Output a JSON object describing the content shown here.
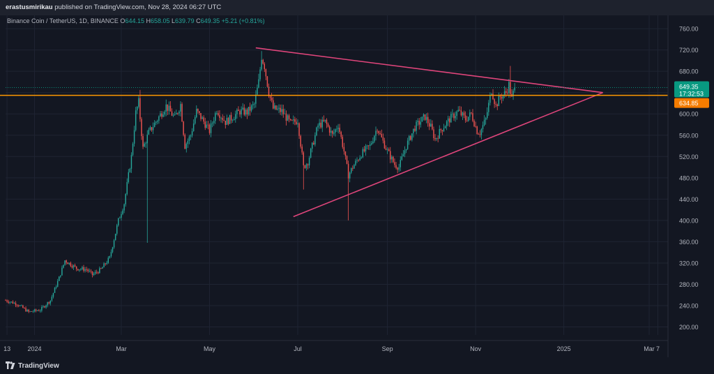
{
  "publish": {
    "author": "erastusmirikau",
    "text": " published on TradingView.com, Nov 28, 2024 06:27 UTC"
  },
  "legend": {
    "symbol": "Binance Coin / TetherUS, 1D, BINANCE",
    "o_label": "O",
    "o": "644.15",
    "h_label": "H",
    "h": "658.05",
    "l_label": "L",
    "l": "639.79",
    "c_label": "C",
    "c": "649.35",
    "change": "+5.21 (+0.81%)"
  },
  "footer": {
    "brand": "TradingView"
  },
  "colors": {
    "background": "#131722",
    "up": "#26a69a",
    "down": "#ef5350",
    "triangle": "#e0457b",
    "horizontal": "#ff9800",
    "price_tag": "#089981",
    "level_tag": "#f57c00",
    "text": "#b2b5be"
  },
  "chart_data": {
    "type": "candlestick",
    "symbol": "Binance Coin / TetherUS",
    "interval": "1D",
    "exchange": "BINANCE",
    "ylim": [
      185,
      785
    ],
    "yticks": [
      200,
      240,
      280,
      320,
      360,
      400,
      440,
      480,
      520,
      560,
      600,
      640,
      680,
      720,
      760
    ],
    "ytick_labels": [
      "200.00",
      "240.00",
      "280.00",
      "320.00",
      "360.00",
      "400.00",
      "440.00",
      "480.00",
      "520.00",
      "560.00",
      "600.00",
      "640.00",
      "680.00",
      "720.00",
      "760.00"
    ],
    "xlim": [
      "2023-12-12",
      "2025-03-14"
    ],
    "xticks": [
      {
        "date": "2023-12-13",
        "label": "13"
      },
      {
        "date": "2024-01-01",
        "label": "2024"
      },
      {
        "date": "2024-03-01",
        "label": "Mar"
      },
      {
        "date": "2024-05-01",
        "label": "May"
      },
      {
        "date": "2024-07-01",
        "label": "Jul"
      },
      {
        "date": "2024-09-01",
        "label": "Sep"
      },
      {
        "date": "2024-11-01",
        "label": "Nov"
      },
      {
        "date": "2025-01-01",
        "label": "2025"
      },
      {
        "date": "2025-03-01",
        "label": "Mar"
      },
      {
        "date": "2025-03-07",
        "label": "7"
      }
    ],
    "grid": true,
    "price_path": [
      [
        "2023-12-12",
        250
      ],
      [
        "2023-12-20",
        243
      ],
      [
        "2023-12-28",
        228
      ],
      [
        "2024-01-05",
        232
      ],
      [
        "2024-01-12",
        250
      ],
      [
        "2024-01-18",
        292
      ],
      [
        "2024-01-22",
        325
      ],
      [
        "2024-01-30",
        310
      ],
      [
        "2024-02-06",
        308
      ],
      [
        "2024-02-10",
        298
      ],
      [
        "2024-02-16",
        308
      ],
      [
        "2024-02-22",
        330
      ],
      [
        "2024-02-28",
        400
      ],
      [
        "2024-03-03",
        432
      ],
      [
        "2024-03-08",
        520
      ],
      [
        "2024-03-11",
        602
      ],
      [
        "2024-03-13",
        622
      ],
      [
        "2024-03-16",
        535
      ],
      [
        "2024-03-20",
        565
      ],
      [
        "2024-03-26",
        590
      ],
      [
        "2024-04-01",
        615
      ],
      [
        "2024-04-07",
        592
      ],
      [
        "2024-04-11",
        618
      ],
      [
        "2024-04-14",
        540
      ],
      [
        "2024-04-18",
        560
      ],
      [
        "2024-04-22",
        605
      ],
      [
        "2024-04-26",
        590
      ],
      [
        "2024-05-01",
        568
      ],
      [
        "2024-05-06",
        608
      ],
      [
        "2024-05-12",
        585
      ],
      [
        "2024-05-16",
        592
      ],
      [
        "2024-05-22",
        605
      ],
      [
        "2024-05-27",
        603
      ],
      [
        "2024-06-01",
        618
      ],
      [
        "2024-06-04",
        660
      ],
      [
        "2024-06-06",
        708
      ],
      [
        "2024-06-08",
        690
      ],
      [
        "2024-06-11",
        640
      ],
      [
        "2024-06-14",
        610
      ],
      [
        "2024-06-20",
        605
      ],
      [
        "2024-06-26",
        582
      ],
      [
        "2024-07-01",
        588
      ],
      [
        "2024-07-05",
        500
      ],
      [
        "2024-07-08",
        510
      ],
      [
        "2024-07-15",
        578
      ],
      [
        "2024-07-20",
        585
      ],
      [
        "2024-07-25",
        560
      ],
      [
        "2024-07-29",
        580
      ],
      [
        "2024-08-02",
        530
      ],
      [
        "2024-08-05",
        485
      ],
      [
        "2024-08-08",
        500
      ],
      [
        "2024-08-14",
        525
      ],
      [
        "2024-08-20",
        540
      ],
      [
        "2024-08-25",
        575
      ],
      [
        "2024-08-27",
        560
      ],
      [
        "2024-09-01",
        530
      ],
      [
        "2024-09-06",
        505
      ],
      [
        "2024-09-09",
        500
      ],
      [
        "2024-09-14",
        540
      ],
      [
        "2024-09-20",
        575
      ],
      [
        "2024-09-27",
        595
      ],
      [
        "2024-10-01",
        575
      ],
      [
        "2024-10-04",
        552
      ],
      [
        "2024-10-08",
        570
      ],
      [
        "2024-10-14",
        590
      ],
      [
        "2024-10-20",
        605
      ],
      [
        "2024-10-25",
        590
      ],
      [
        "2024-10-29",
        600
      ],
      [
        "2024-11-02",
        568
      ],
      [
        "2024-11-04",
        565
      ],
      [
        "2024-11-08",
        590
      ],
      [
        "2024-11-12",
        645
      ],
      [
        "2024-11-15",
        615
      ],
      [
        "2024-11-18",
        632
      ],
      [
        "2024-11-22",
        640
      ],
      [
        "2024-11-24",
        655
      ],
      [
        "2024-11-26",
        628
      ],
      [
        "2024-11-28",
        649
      ]
    ],
    "wicks": [
      {
        "date": "2024-08-05",
        "low": 400
      },
      {
        "date": "2024-07-05",
        "low": 458
      },
      {
        "date": "2024-03-14",
        "high": 645
      },
      {
        "date": "2024-06-06",
        "high": 718
      },
      {
        "date": "2024-11-25",
        "high": 690
      },
      {
        "date": "2024-03-19",
        "low": 358
      }
    ],
    "last_candle": {
      "date": "2024-11-28",
      "open": 644.15,
      "high": 658.05,
      "low": 639.79,
      "close": 649.35
    },
    "lines": [
      {
        "name": "upper-trendline",
        "type": "trendline",
        "from": [
          "2024-06-02",
          724
        ],
        "to": [
          "2025-01-28",
          640
        ]
      },
      {
        "name": "lower-trendline",
        "type": "trendline",
        "from": [
          "2024-06-28",
          407
        ],
        "to": [
          "2025-01-28",
          640
        ]
      },
      {
        "name": "horizontal-level",
        "type": "horizontal",
        "value": 634.85
      }
    ],
    "price_labels": [
      {
        "name": "last-price",
        "value": "649.35",
        "countdown": "17:32:53"
      },
      {
        "name": "level-price",
        "value": "634.85"
      }
    ]
  }
}
